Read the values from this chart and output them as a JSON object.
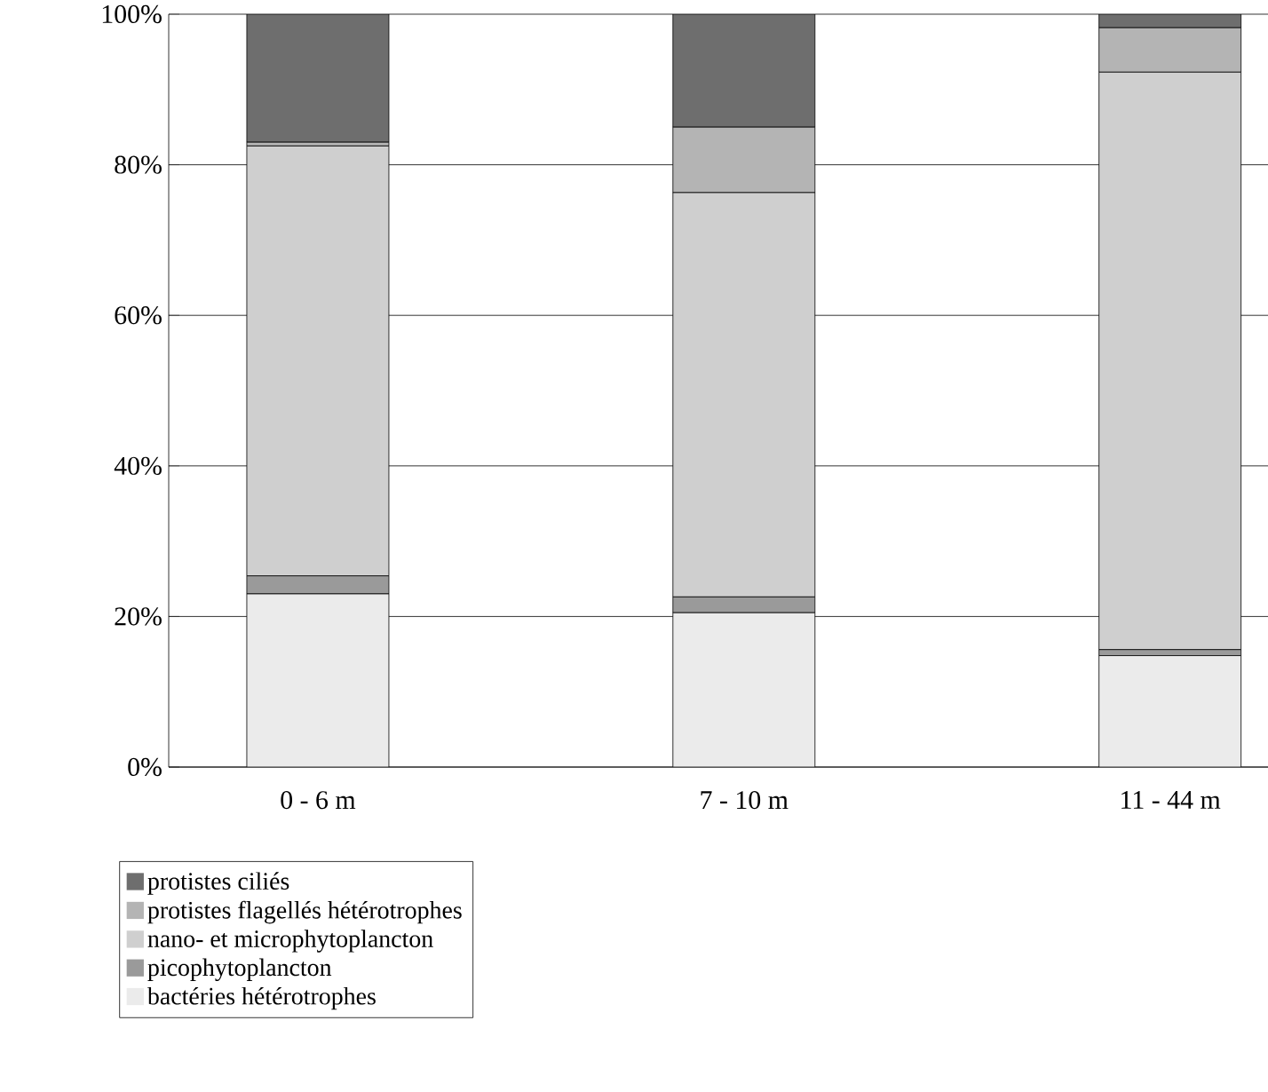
{
  "chart_data": {
    "type": "bar",
    "stacked": true,
    "categories": [
      "0 - 6 m",
      "7 - 10 m",
      "11 - 44 m"
    ],
    "series": [
      {
        "name": "bactéries hétérotrophes",
        "color": "#ebebeb",
        "values": [
          23.0,
          20.5,
          14.8
        ]
      },
      {
        "name": "picophytoplancton",
        "color": "#9a9a9a",
        "values": [
          2.4,
          2.1,
          0.8
        ]
      },
      {
        "name": "nano- et microphytoplancton",
        "color": "#cfcfcf",
        "values": [
          57.1,
          53.7,
          76.7
        ]
      },
      {
        "name": "protistes flagellés hétérotrophes",
        "color": "#b4b4b4",
        "values": [
          0.5,
          8.7,
          5.9
        ]
      },
      {
        "name": "protistes ciliés",
        "color": "#6e6e6e",
        "values": [
          17.0,
          15.0,
          1.8
        ]
      }
    ],
    "ylim": [
      0,
      100
    ],
    "yticks": [
      {
        "value": 0,
        "label": "0%"
      },
      {
        "value": 20,
        "label": "20%"
      },
      {
        "value": 40,
        "label": "40%"
      },
      {
        "value": 60,
        "label": "60%"
      },
      {
        "value": 80,
        "label": "80%"
      },
      {
        "value": 100,
        "label": "100%"
      }
    ],
    "grid": "y",
    "legend": "bottom left"
  }
}
